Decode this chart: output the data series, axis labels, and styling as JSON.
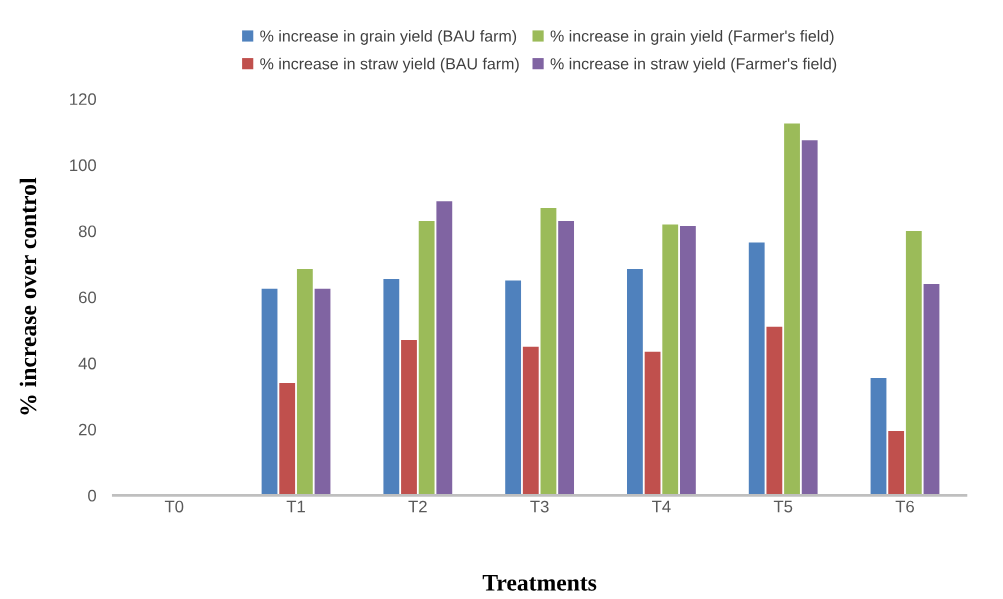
{
  "chart_data": {
    "type": "bar",
    "xlabel": "Treatments",
    "ylabel": "% increase over control",
    "categories": [
      "T0",
      "T1",
      "T2",
      "T3",
      "T4",
      "T5",
      "T6"
    ],
    "series": [
      {
        "name": "% increase in grain yield (BAU farm)",
        "color": "#4f81bd",
        "values": [
          0,
          62.5,
          65.5,
          65,
          68.5,
          76.5,
          35.5
        ]
      },
      {
        "name": "% increase in straw yield (BAU farm)",
        "color": "#c0504d",
        "values": [
          0,
          34,
          47,
          45,
          43.5,
          51,
          19.5
        ]
      },
      {
        "name": "% increase in grain yield (Farmer's field)",
        "color": "#9bbb59",
        "values": [
          0,
          68.5,
          83,
          87,
          82,
          112.5,
          80
        ]
      },
      {
        "name": "% increase in straw yield (Farmer's field)",
        "color": "#8064a2",
        "values": [
          0,
          62.5,
          89,
          83,
          81.5,
          107.5,
          64
        ]
      }
    ],
    "ylim": [
      0,
      120
    ],
    "yticks": [
      0,
      20,
      40,
      60,
      80,
      100,
      120
    ],
    "grid": false,
    "legend": "top"
  }
}
